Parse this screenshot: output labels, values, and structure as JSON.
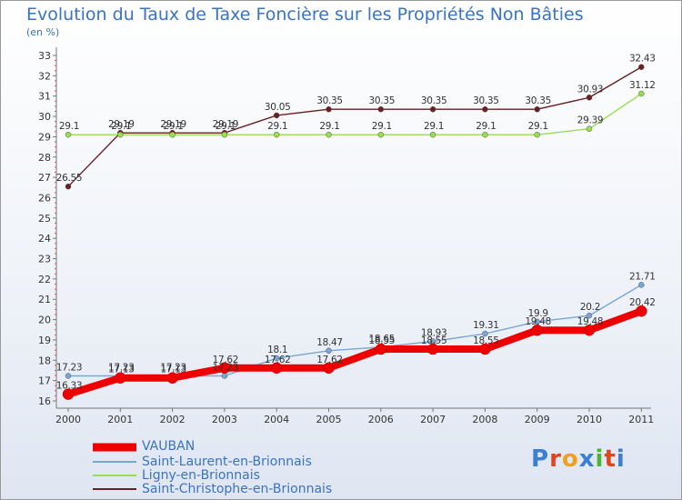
{
  "header": {
    "title": "Evolution du Taux de Taxe Foncière sur les Propriétés Non Bâties",
    "unit": "(en %)"
  },
  "logo": {
    "text": "Proxiti"
  },
  "chart_data": {
    "type": "line",
    "title": "Evolution du Taux de Taxe Foncière sur les Propriétés Non Bâties",
    "ylabel": "(en %)",
    "xlabel": "",
    "ylim": [
      16,
      33
    ],
    "x": [
      "2000",
      "2001",
      "2002",
      "2003",
      "2004",
      "2005",
      "2006",
      "2007",
      "2008",
      "2009",
      "2010",
      "2011"
    ],
    "yticks": [
      "16",
      "17",
      "18",
      "19",
      "20",
      "21",
      "22",
      "23",
      "24",
      "25",
      "26",
      "27",
      "28",
      "29",
      "30",
      "31",
      "32",
      "33"
    ],
    "series": [
      {
        "name": "VAUBAN",
        "color": "#ee0000",
        "values": [
          16.33,
          17.13,
          17.13,
          17.62,
          17.62,
          17.62,
          18.55,
          18.55,
          18.55,
          19.48,
          19.48,
          20.42
        ],
        "labels": [
          "16.33",
          "17.13",
          "17.13",
          "17.62",
          "17.62",
          "17.62",
          "18.55",
          "18.55",
          "18.55",
          "19.48",
          "19.48",
          "20.42"
        ]
      },
      {
        "name": "Saint-Laurent-en-Brionnais",
        "color": "#7aa6d6",
        "values": [
          17.23,
          17.23,
          17.23,
          17.23,
          18.1,
          18.47,
          18.65,
          18.93,
          19.31,
          19.9,
          20.2,
          21.71
        ],
        "labels": [
          "17.23",
          "17.23",
          "17.23",
          "17.23",
          "18.1",
          "18.47",
          "18.65",
          "18.93",
          "19.31",
          "19.9",
          "20.2",
          "21.71"
        ]
      },
      {
        "name": "Ligny-en-Brionnais",
        "color": "#99dd55",
        "values": [
          29.1,
          29.1,
          29.1,
          29.1,
          29.1,
          29.1,
          29.1,
          29.1,
          29.1,
          29.1,
          29.39,
          31.12
        ],
        "labels": [
          "29.1",
          "29.1",
          "29.1",
          "29.1",
          "29.1",
          "29.1",
          "29.1",
          "29.1",
          "29.1",
          "29.1",
          "29.39",
          "31.12"
        ]
      },
      {
        "name": "Saint-Christophe-en-Brionnais",
        "color": "#6b1f22",
        "values": [
          26.55,
          29.19,
          29.19,
          29.19,
          30.05,
          30.35,
          30.35,
          30.35,
          30.35,
          30.35,
          30.93,
          32.43
        ],
        "labels": [
          "26.55",
          "29.19",
          "29.19",
          "29.19",
          "30.05",
          "30.35",
          "30.35",
          "30.35",
          "30.35",
          "30.35",
          "30.93",
          "32.43"
        ]
      }
    ],
    "legend": "bottom-left",
    "grid": false
  }
}
